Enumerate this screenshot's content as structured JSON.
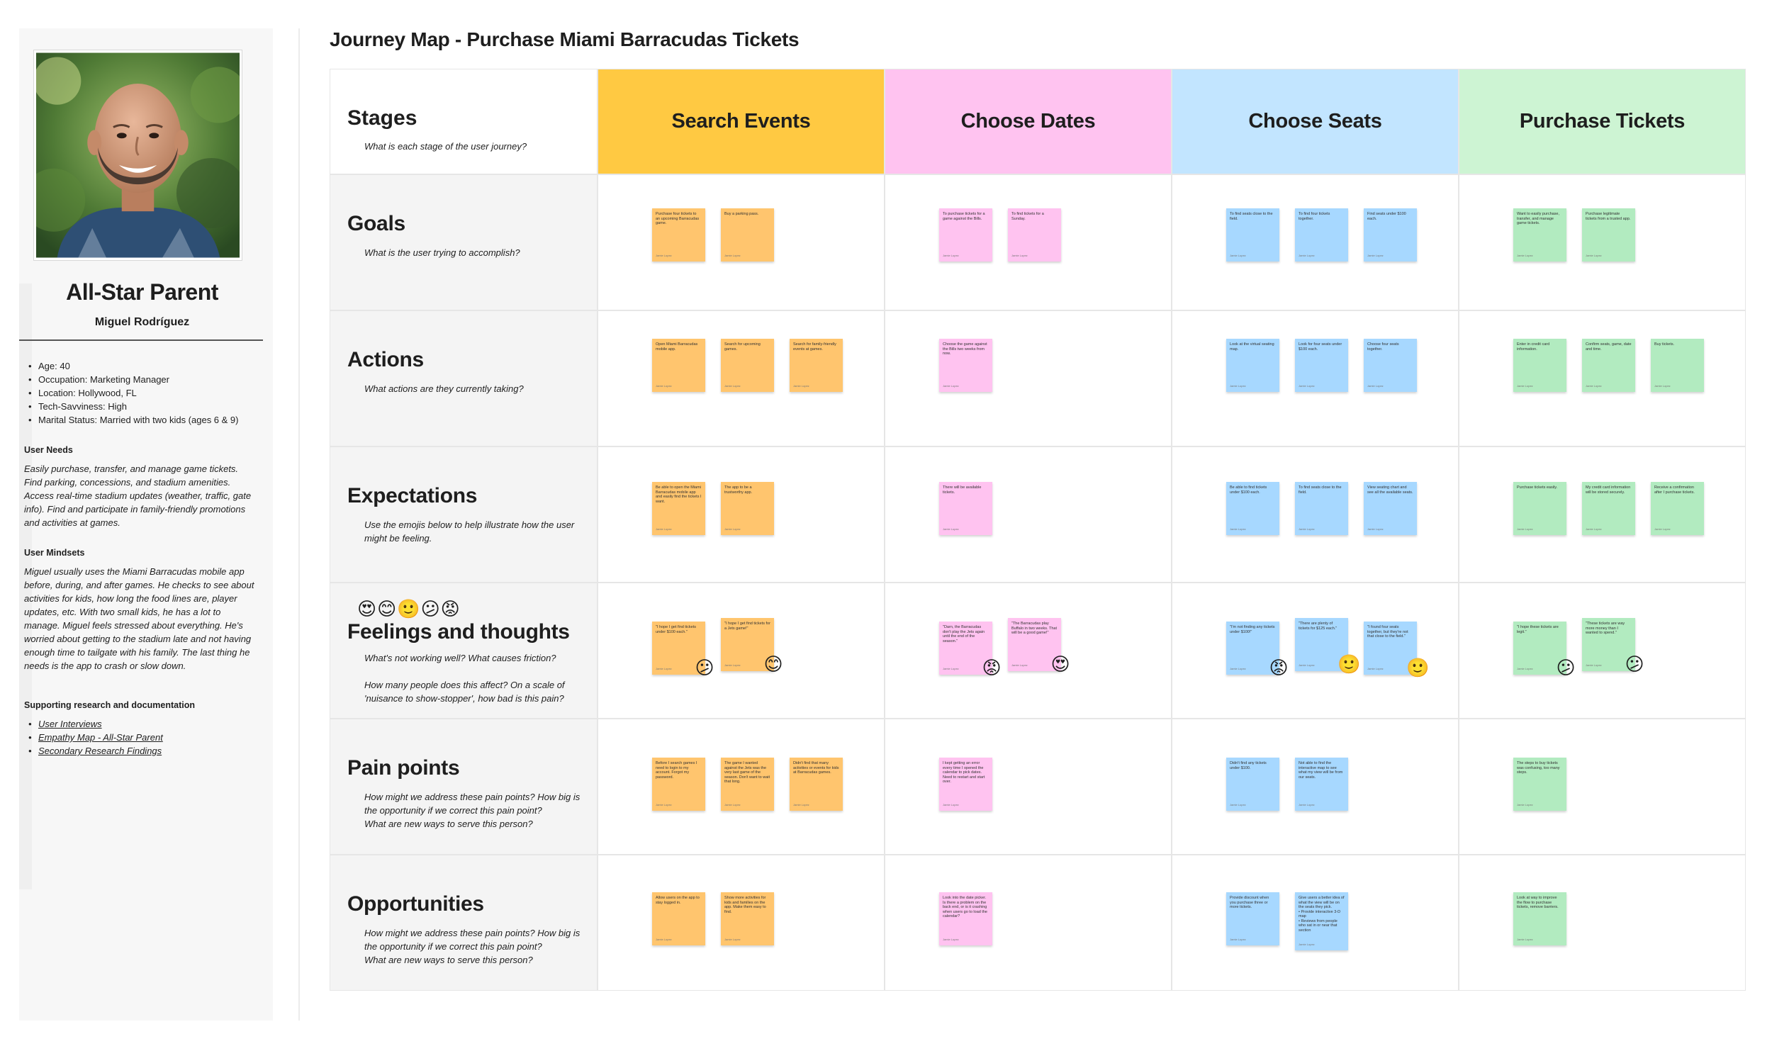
{
  "persona": {
    "name": "All-Star Parent",
    "person": "Miguel Rodríguez",
    "facts": [
      "Age: 40",
      "Occupation: Marketing Manager",
      "Location: Hollywood, FL",
      "Tech-Savviness: High",
      "Marital Status: Married with two kids (ages 6 & 9)"
    ],
    "needs_heading": "User Needs",
    "needs_text": "Easily purchase, transfer, and manage game tickets. Find parking, concessions, and stadium amenities. Access real-time stadium updates (weather, traffic, gate info). Find and participate in family-friendly promotions and activities at games.",
    "mindsets_heading": "User Mindsets",
    "mindsets_text": "Miguel usually uses the Miami Barracudas mobile app before, during, and after games. He checks to see about activities for kids, how long the food lines are, player updates, etc. With two small kids, he has a lot to manage. Miguel feels stressed about everything. He's worried about getting to the stadium late and not having enough time to tailgate with his family. The last thing he needs is the app to crash or slow down.",
    "research_heading": "Supporting research and documentation",
    "links": [
      "User Interviews",
      "Empathy Map - All-Star Parent",
      "Secondary Research Findings"
    ]
  },
  "map": {
    "title": "Journey Map - Purchase Miami Barracudas Tickets",
    "stages_label": "Stages",
    "stages_sub": "What is each stage of the user journey?",
    "stages": [
      {
        "name": "Search Events",
        "color": "#ffc942"
      },
      {
        "name": "Choose Dates",
        "color": "#ffc3f0"
      },
      {
        "name": "Choose Seats",
        "color": "#c2e5ff"
      },
      {
        "name": "Purchase Tickets",
        "color": "#cdf4d3"
      }
    ],
    "rows": [
      {
        "title": "Goals",
        "sub": "What is the user trying to accomplish?"
      },
      {
        "title": "Actions",
        "sub": "What actions are they currently taking?"
      },
      {
        "title": "Expectations",
        "sub": "Use the emojis below to help illustrate how the user might be feeling."
      },
      {
        "title": "Feelings and thoughts",
        "sub": "What's not working well? What causes friction?\n\nHow many people does this affect? On a scale of 'nuisance to show-stopper', how bad is this pain?"
      },
      {
        "title": "Pain points",
        "sub": "How might we address these pain points? How big is the opportunity if we correct this pain point?\nWhat are new ways to serve this person?"
      },
      {
        "title": "Opportunities",
        "sub": "How might we address these pain points? How big is the opportunity if we correct this pain point?\nWhat are new ways to serve this person?"
      }
    ],
    "emoji_scale": "😍😊🙂😕😡",
    "notes": [
      [
        [
          [
            "Purchase four tickets to an upcoming Barracudas game.",
            "Buy a parking pass."
          ],
          [
            "To purchase tickets for a game against the Bills.",
            "To find tickets for a Sunday."
          ],
          [
            "To find seats close to the field.",
            "To find four tickets together.",
            "Find seats under $100 each."
          ],
          [
            "Want to easily purchase, transfer, and manage game tickets.",
            "Purchase legitimate tickets from a trusted app."
          ]
        ]
      ],
      [
        [
          [
            "Open Miami Barracudas mobile app.",
            "Search for upcoming games.",
            "Search for family-friendly events at games."
          ],
          [
            "Choose the game against the Bills two weeks from now."
          ],
          [
            "Look at the virtual seating map.",
            "Look for four seats under $100 each.",
            "Choose four seats together."
          ],
          [
            "Enter in credit card information.",
            "Confirm seats, game, date and time.",
            "Buy tickets."
          ]
        ]
      ],
      [
        [
          [
            "Be able to open the Miami Barracudas mobile app and easily find the tickets I want.",
            "The app to be a trustworthy app."
          ],
          [
            "There will be available tickets."
          ],
          [
            "Be able to find tickets under $100 each.",
            "To find seats close to the field.",
            "View seating chart and see all the available seats."
          ],
          [
            "Purchase tickets easily.",
            "My credit card information will be stored securely.",
            "Receive a confirmation after I purchase tickets."
          ]
        ]
      ],
      [
        [
          [
            "\"I hope I get find tickets under $100 each.\"",
            "\"I hope I get find tickets for a Jets game!\""
          ],
          [
            "\"Darn, the Barracudas don't play the Jets again until the end of the season.\"",
            "\"The Barracudas play Buffalo in two weeks. That will be a good game!\""
          ],
          [
            "\"I'm not finding any tickets under $100!\"",
            "\"There are plenty of tickets for $125 each.\"",
            "\"I found four seats together, but they're not that close to the field.\""
          ],
          [
            "\"I hope these tickets are legit.\"",
            "\"These tickets are way more money than I wanted to spend.\""
          ]
        ]
      ],
      [
        [
          [
            "Before I search games I need to login to my account. Forgot my password.",
            "The game I wanted against the Jets was the very last game of the season. Don't want to wait that long.",
            "Didn't find that many activities or events for kids at Barracudas games."
          ],
          [
            "I kept getting an error every time I opened the calendar to pick dates. Need to restart and start over."
          ],
          [
            "Didn't find any tickets under $100.",
            "Not able to find the interactive map to see what my view will be from our seats."
          ],
          [
            "The steps to buy tickets was confusing, too many steps."
          ]
        ]
      ],
      [
        [
          [
            "Allow users on the app to stay logged in.",
            "Show more activities for kids and families on the app. Make them easy to find."
          ],
          [
            "Look into the date picker. Is there a problem on the back end, or is it crashing when users go to load the calendar?"
          ],
          [
            "Provide discount when you purchase three or more tickets.",
            "Give users a better idea of what the view will be on the seats they pick.\n• Provide interactive 3-D map\n• Reviews from people who sat in or near that section"
          ],
          [
            "Look at way to improve the flow to purchase tickets, remove barriers."
          ]
        ]
      ]
    ],
    "note_author": "Jamie Lopez",
    "feelings_emojis": [
      [
        "😕",
        "😊"
      ],
      [
        "😡",
        "😍"
      ],
      [
        "😡",
        "🙂",
        "🙂"
      ],
      [
        "😕",
        "😕"
      ]
    ]
  }
}
